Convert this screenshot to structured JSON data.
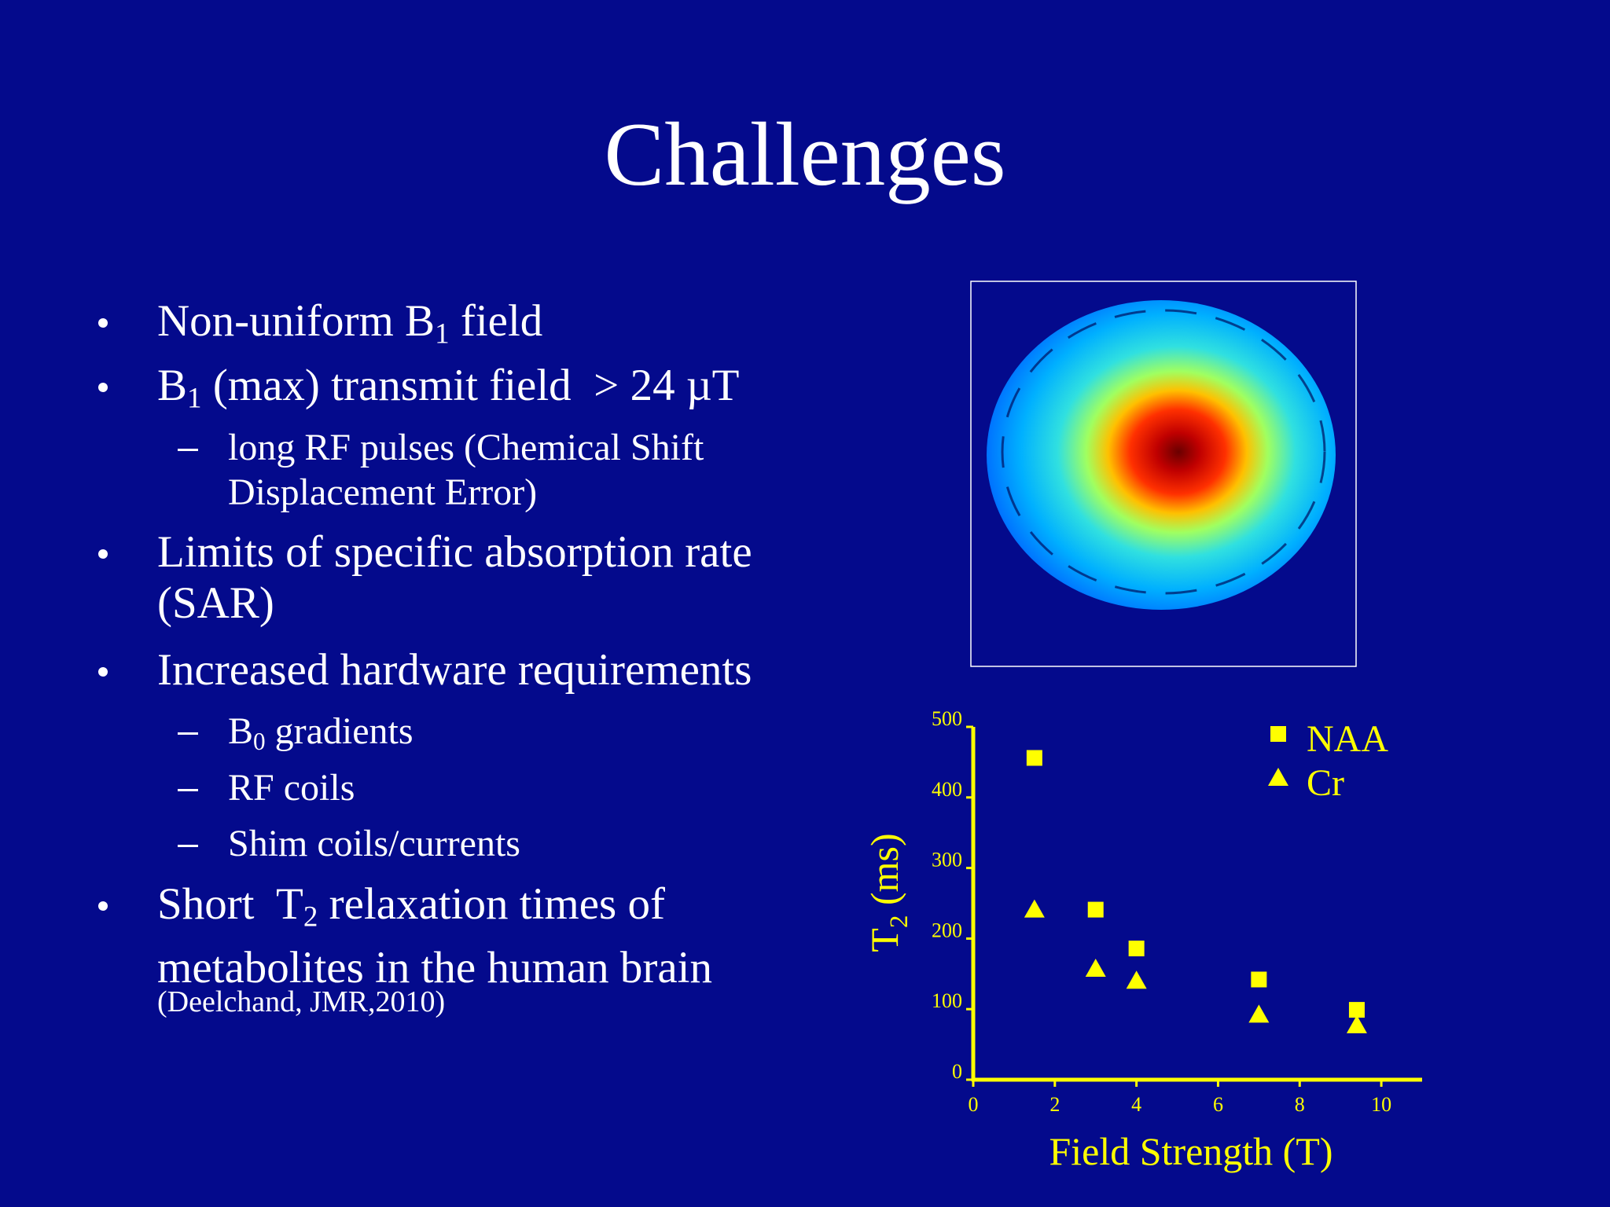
{
  "title": "Challenges",
  "bullets": [
    {
      "text": [
        "Non-uniform B",
        "1",
        " field"
      ]
    },
    {
      "text": [
        "B",
        "1",
        " (max) transmit field  > 24 µT"
      ],
      "sub_items": [
        [
          "long RF pulses (Chemical Shift Displacement Error)"
        ]
      ]
    },
    {
      "text": [
        "Limits of specific absorption rate (SAR)"
      ]
    },
    {
      "text": [
        "Increased hardware requirements"
      ],
      "sub_items": [
        [
          "B",
          "0",
          " gradients"
        ],
        [
          "RF coils"
        ],
        [
          "Shim coils/currents"
        ]
      ]
    },
    {
      "text": [
        "Short  T",
        "2",
        " relaxation times of metabolites in the human brain"
      ],
      "note": "(Deelchand, JMR,2010)"
    }
  ],
  "chart_data": {
    "type": "scatter",
    "x_label": "Field Strength (T)",
    "y_label": [
      "T",
      "2",
      " (ms)"
    ],
    "xlim": [
      0,
      11
    ],
    "ylim": [
      0,
      500
    ],
    "xticks": [
      0,
      2,
      4,
      6,
      8,
      10
    ],
    "yticks": [
      0,
      100,
      200,
      300,
      400,
      500
    ],
    "series": [
      {
        "name": "NAA",
        "color": "#ffff00",
        "marker": "square",
        "x": [
          1.5,
          3,
          4,
          7,
          9.4
        ],
        "values": [
          456,
          241,
          186,
          142,
          99
        ]
      },
      {
        "name": "Cr",
        "color": "#ffff00",
        "marker": "triangle",
        "x": [
          1.5,
          3,
          4,
          7,
          9.4
        ],
        "values": [
          241,
          157,
          140,
          92,
          77
        ]
      }
    ]
  }
}
